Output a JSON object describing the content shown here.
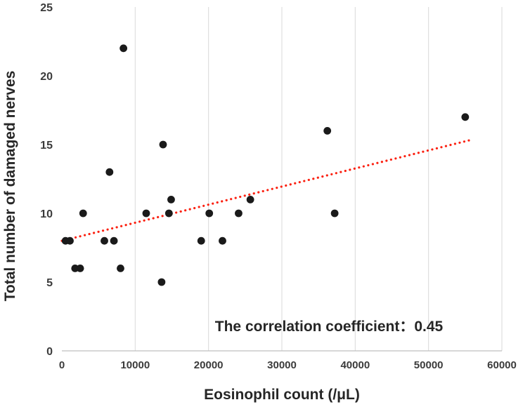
{
  "chart_data": {
    "type": "scatter",
    "title": "",
    "xlabel": "Eosinophil count (/μL)",
    "ylabel": "Total number of damaged nerves",
    "annotation": "The correlation coefficient：0.45",
    "xlim": [
      0,
      60000
    ],
    "ylim": [
      0,
      25
    ],
    "xticks": [
      0,
      10000,
      20000,
      30000,
      40000,
      50000,
      60000
    ],
    "yticks": [
      0,
      5,
      10,
      15,
      20,
      25
    ],
    "grid": "vertical-only",
    "legend": "none",
    "point_color": "#1a1a1a",
    "grid_color": "#d9d9d9",
    "axis_color": "#bfbfbf",
    "trendline": {
      "style": "dotted",
      "color": "#fb2111",
      "x1": 0,
      "y1": 8.0,
      "x2": 55500,
      "y2": 15.3
    },
    "points": [
      [
        500,
        8
      ],
      [
        1100,
        8
      ],
      [
        1800,
        6
      ],
      [
        2500,
        6
      ],
      [
        2900,
        10
      ],
      [
        5800,
        8
      ],
      [
        6500,
        13
      ],
      [
        7100,
        8
      ],
      [
        8000,
        6
      ],
      [
        8400,
        22
      ],
      [
        11500,
        10
      ],
      [
        13600,
        5
      ],
      [
        13800,
        15
      ],
      [
        14600,
        10
      ],
      [
        14900,
        11
      ],
      [
        19000,
        8
      ],
      [
        20100,
        10
      ],
      [
        21900,
        8
      ],
      [
        24100,
        10
      ],
      [
        25700,
        11
      ],
      [
        36200,
        16
      ],
      [
        37200,
        10
      ],
      [
        55000,
        17
      ]
    ]
  }
}
